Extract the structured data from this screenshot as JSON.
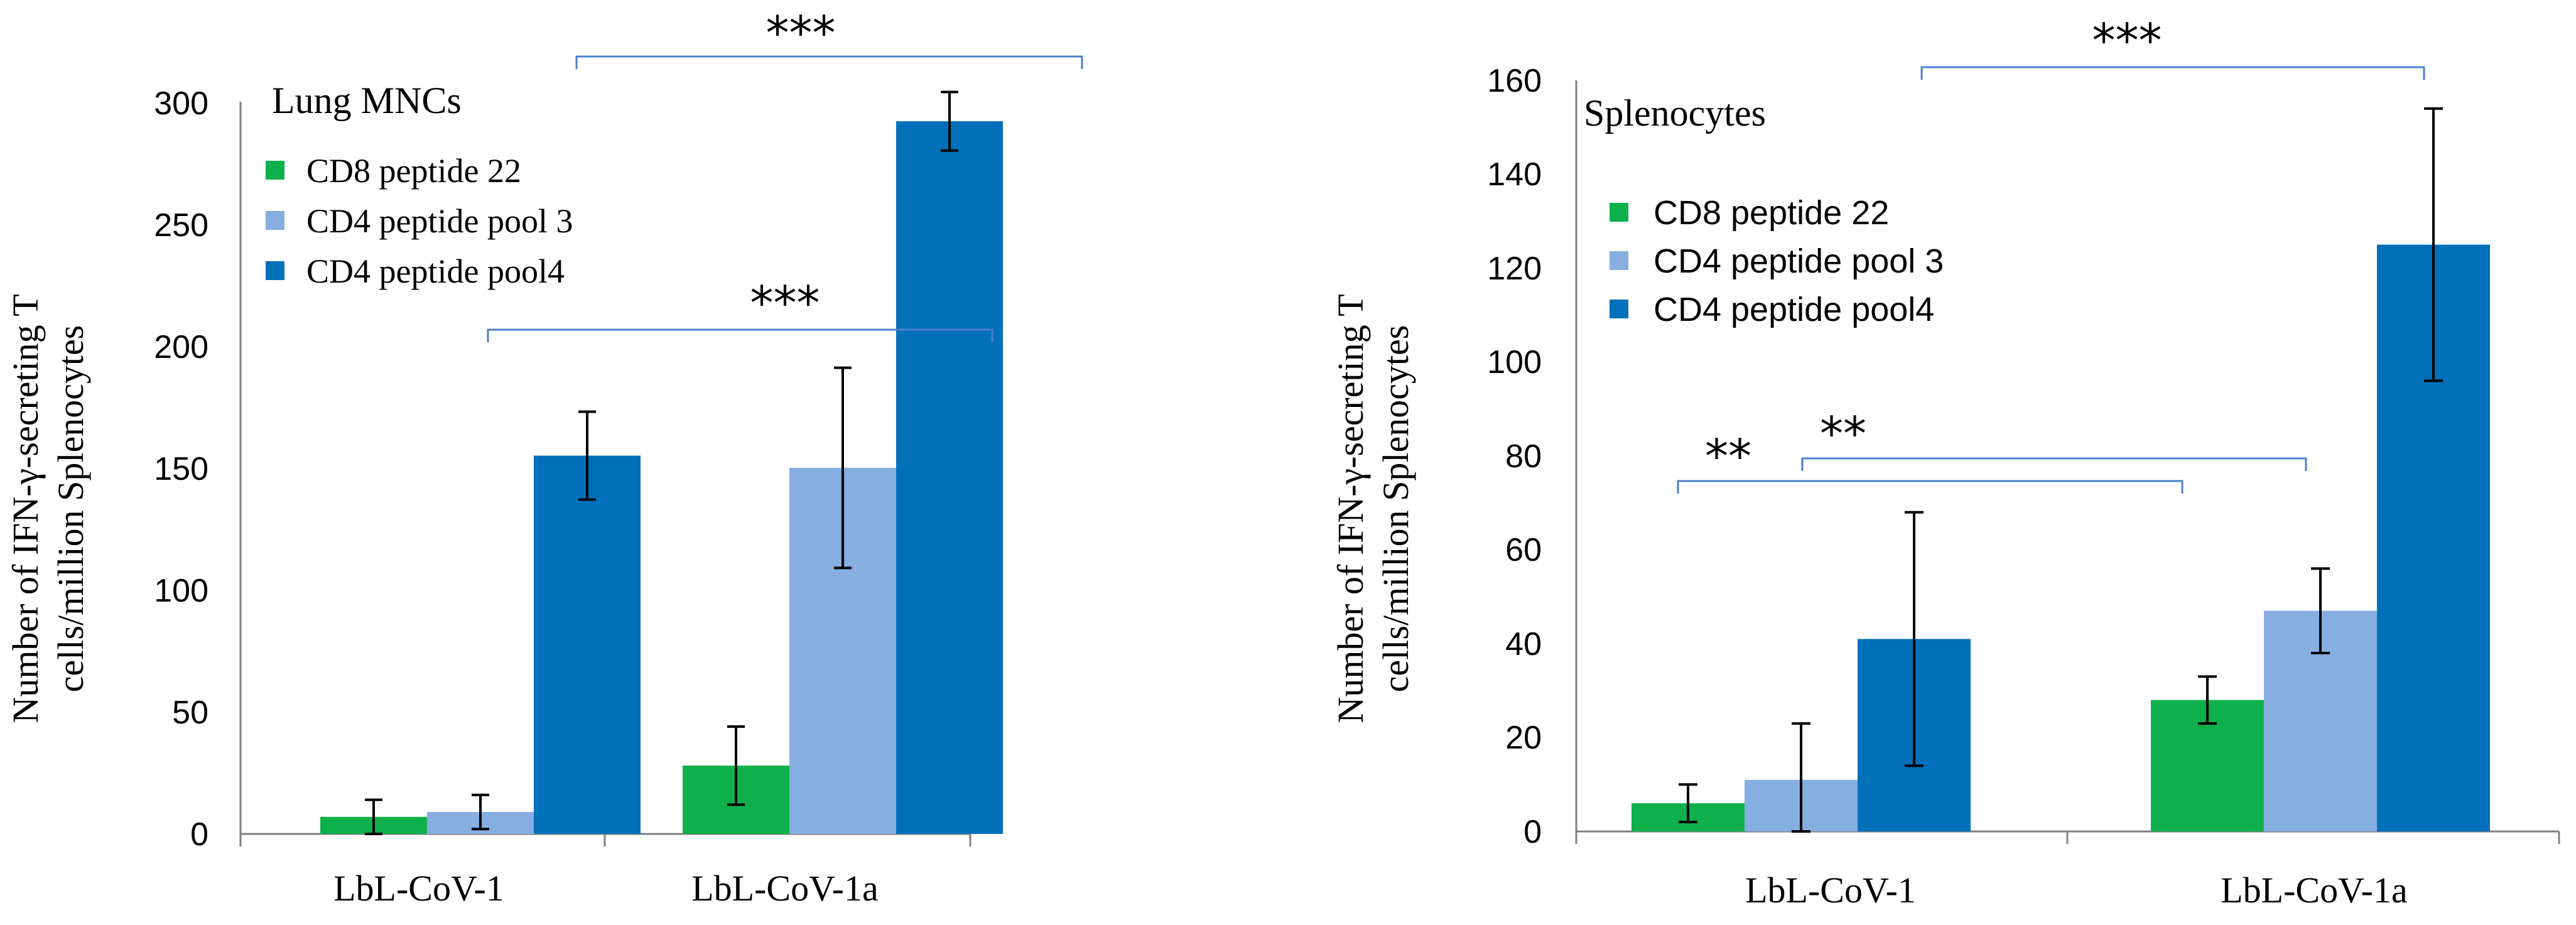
{
  "colors": {
    "cd8": "#0db04b",
    "pool3": "#86aee0",
    "pool4": "#0170bb",
    "bracket": "#4a7fd0"
  },
  "chart_data": [
    {
      "type": "bar",
      "title": "Lung MNCs",
      "ylabel_line1": "Number of IFN-γ-secreting T",
      "ylabel_line2": "cells/million Splenocytes",
      "xlabel": "",
      "ylim": [
        0,
        300
      ],
      "yticks": [
        0,
        50,
        100,
        150,
        200,
        250,
        300
      ],
      "categories": [
        "LbL-CoV-1",
        "LbL-CoV-1a"
      ],
      "series": [
        {
          "name": "CD8 peptide 22",
          "color": "#0db04b",
          "values": [
            7,
            28
          ],
          "errors": [
            7,
            16
          ]
        },
        {
          "name": "CD4 peptide pool 3",
          "color": "#86aee0",
          "values": [
            9,
            150
          ],
          "errors": [
            7,
            41
          ]
        },
        {
          "name": "CD4 peptide pool4",
          "color": "#0170bb",
          "values": [
            155,
            292
          ],
          "errors": [
            18,
            12
          ]
        }
      ],
      "significance": [
        {
          "label": "***",
          "level": 303
        },
        {
          "label": "***",
          "level": 206
        }
      ]
    },
    {
      "type": "bar",
      "title": "Splenocytes",
      "ylabel_line1": "Number of IFN-γ-secreting T",
      "ylabel_line2": "cells/million Splenocytes",
      "xlabel": "",
      "ylim": [
        0,
        160
      ],
      "yticks": [
        0,
        20,
        40,
        60,
        80,
        100,
        120,
        140,
        160
      ],
      "categories": [
        "LbL-CoV-1",
        "LbL-CoV-1a"
      ],
      "series": [
        {
          "name": "CD8 peptide 22",
          "color": "#0db04b",
          "values": [
            6,
            28
          ],
          "errors": [
            4,
            5
          ]
        },
        {
          "name": "CD4 peptide pool 3",
          "color": "#86aee0",
          "values": [
            11,
            47
          ],
          "errors": [
            12,
            9
          ]
        },
        {
          "name": "CD4 peptide pool4",
          "color": "#0170bb",
          "values": [
            41,
            125
          ],
          "errors": [
            27,
            29
          ]
        }
      ],
      "significance": [
        {
          "label": "***",
          "level": 162
        },
        {
          "label": "**",
          "level": 74
        },
        {
          "label": "**",
          "level": 76
        }
      ]
    }
  ]
}
